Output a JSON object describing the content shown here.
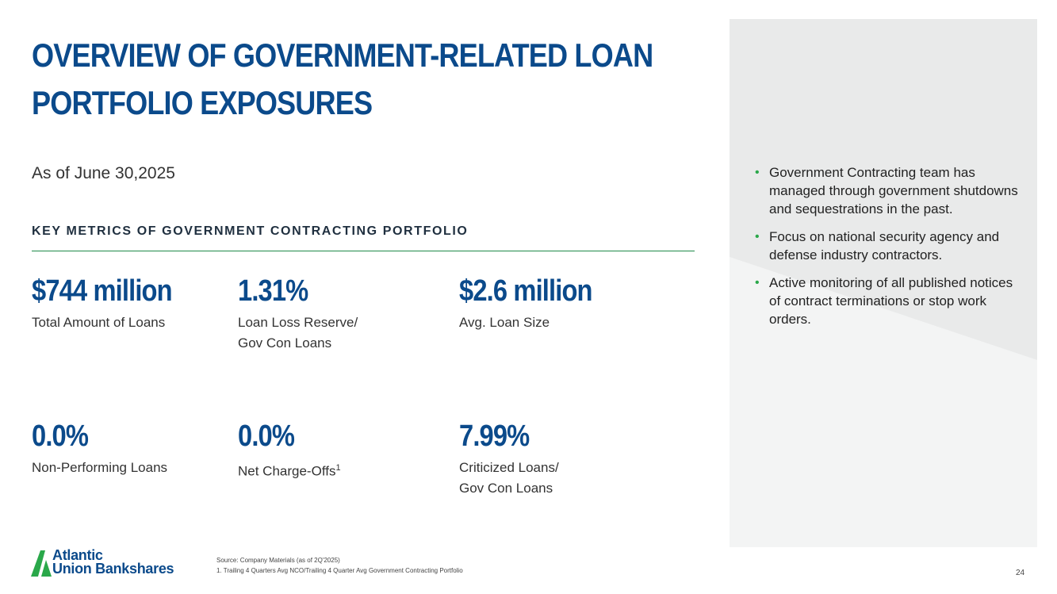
{
  "title": {
    "line1": "OVERVIEW OF GOVERNMENT-RELATED LOAN",
    "line2": "PORTFOLIO EXPOSURES"
  },
  "as_of": "As of June 30,2025",
  "section_heading": "KEY METRICS OF GOVERNMENT CONTRACTING PORTFOLIO",
  "metrics": [
    {
      "value": "$744 million",
      "label": "Total Amount of Loans"
    },
    {
      "value": "1.31%",
      "label_line1": "Loan Loss Reserve/",
      "label_line2": "Gov Con Loans"
    },
    {
      "value": "$2.6 million",
      "label": "Avg. Loan Size"
    },
    {
      "value": "0.0%",
      "label": "Non-Performing Loans"
    },
    {
      "value": "0.0%",
      "label": "Net Charge-Offs",
      "footnote_ref": "1"
    },
    {
      "value": "7.99%",
      "label_line1": "Criticized Loans/",
      "label_line2": "Gov Con Loans"
    }
  ],
  "sidebar": {
    "bullets": [
      "Government Contracting team has managed through government shutdowns and sequestrations in the past.",
      "Focus on national security agency and defense industry contractors.",
      "Active monitoring of all published notices of contract terminations or stop work orders."
    ]
  },
  "logo": {
    "line1": "Atlantic",
    "line2": "Union Bankshares"
  },
  "footnotes": {
    "source": "Source: Company Materials (as of 2Q'2025)",
    "note1": "1. Trailing 4 Quarters Avg NCO/Trailing 4 Quarter Avg Government Contracting Portfolio"
  },
  "page_number": "24",
  "colors": {
    "title_blue": "#0b4a8b",
    "accent_green": "#2aa84a",
    "divider_green": "#1e8a4a",
    "panel_gray": "#f1f2f2"
  }
}
